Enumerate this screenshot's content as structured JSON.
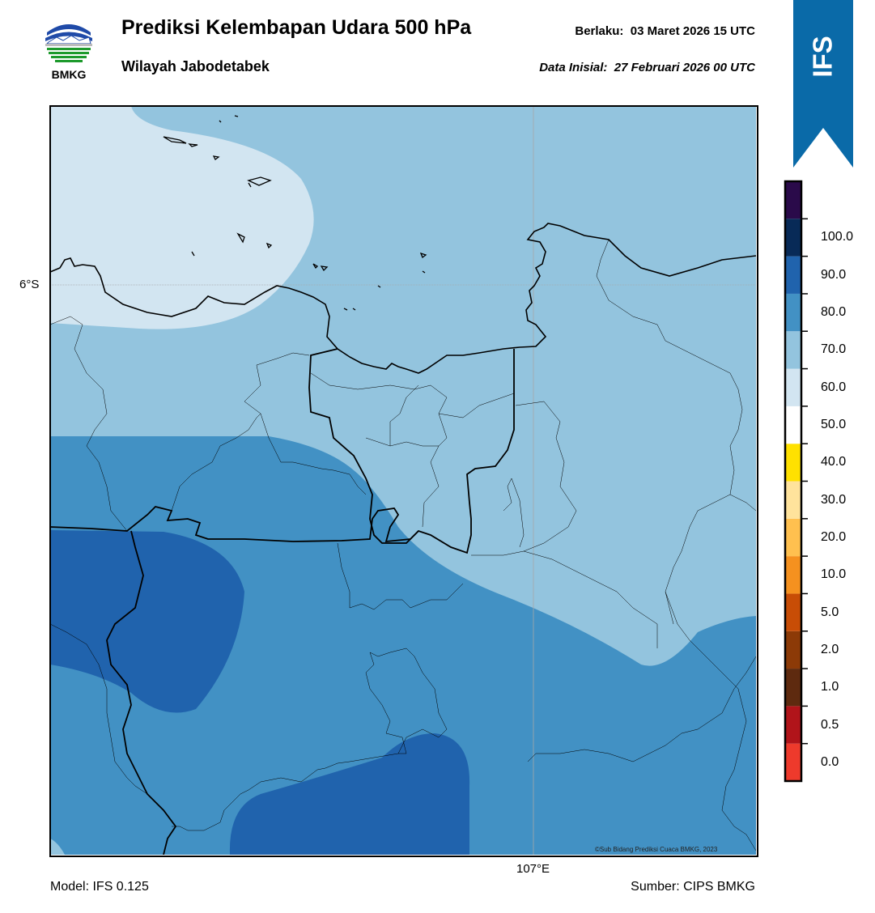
{
  "header": {
    "logo_text": "BMKG",
    "title": "Prediksi Kelembapan Udara 500 hPa",
    "subtitle": "Wilayah Jabodetabek",
    "valid_label": "Berlaku:",
    "valid_value": "03 Maret 2026 15 UTC",
    "init_label": "Data Inisial:",
    "init_value": "27 Februari 2026 00 UTC"
  },
  "model_badge": {
    "label": "IFS",
    "color": "#0a6aa8"
  },
  "map": {
    "latitude_label": "6°S",
    "longitude_label": "107°E",
    "credit": "©Sub Bidang Prediksi Cuaca BMKG, 2023",
    "fill_colors": {
      "50-60": "#d2e5f1",
      "60-70": "#93c4de",
      "70-80": "#4291c4",
      "80-90": "#2063ad"
    }
  },
  "legend": {
    "bins": [
      {
        "label": "0.0",
        "color": "#ee3a2c"
      },
      {
        "label": "0.5",
        "color": "#b1141a"
      },
      {
        "label": "1.0",
        "color": "#5e2a0f"
      },
      {
        "label": "2.0",
        "color": "#8c3a07"
      },
      {
        "label": "5.0",
        "color": "#c84d06"
      },
      {
        "label": "10.0",
        "color": "#f5911f"
      },
      {
        "label": "20.0",
        "color": "#ffc04f"
      },
      {
        "label": "30.0",
        "color": "#ffe39c"
      },
      {
        "label": "40.0",
        "color": "#ffe100"
      },
      {
        "label": "50.0",
        "color": "#ffffff"
      },
      {
        "label": "60.0",
        "color": "#d2e5f1"
      },
      {
        "label": "70.0",
        "color": "#93c4de"
      },
      {
        "label": "80.0",
        "color": "#4291c4"
      },
      {
        "label": "90.0",
        "color": "#2063ad"
      },
      {
        "label": "100.0",
        "color": "#082a57"
      }
    ],
    "top_color": "#2a0a4a"
  },
  "footer": {
    "model": "Model: IFS 0.125",
    "source": "Sumber: CIPS BMKG"
  }
}
